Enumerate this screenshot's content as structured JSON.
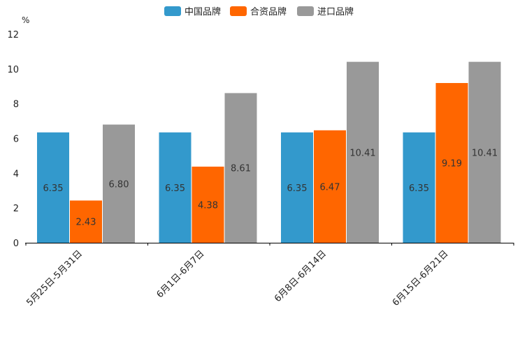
{
  "chart_data": {
    "type": "bar",
    "title": "",
    "xlabel": "",
    "ylabel": "%",
    "ylim": [
      0,
      12
    ],
    "yticks": [
      0,
      2,
      4,
      6,
      8,
      10,
      12
    ],
    "grid": false,
    "legend_position": "top-center",
    "categories": [
      "5月25日-5月31日",
      "6月1日-6月7日",
      "6月8日-6月14日",
      "6月15日-6月21日"
    ],
    "series": [
      {
        "name": "中国品牌",
        "color": "#3399cc",
        "values": [
          6.35,
          6.35,
          6.35,
          6.35
        ],
        "labels": [
          "6.35",
          "6.35",
          "6.35",
          "6.35"
        ]
      },
      {
        "name": "合资品牌",
        "color": "#ff6600",
        "values": [
          2.43,
          4.38,
          6.47,
          9.19
        ],
        "labels": [
          "2.43",
          "4.38",
          "6.47",
          "9.19"
        ]
      },
      {
        "name": "进口品牌",
        "color": "#999999",
        "values": [
          6.8,
          8.61,
          10.41,
          10.41
        ],
        "labels": [
          "6.80",
          "8.61",
          "10.41",
          "10.41"
        ]
      }
    ]
  }
}
